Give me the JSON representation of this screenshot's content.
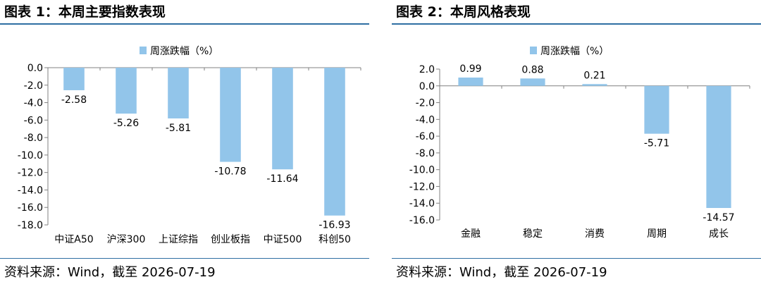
{
  "colors": {
    "bar": "#92c5ea",
    "axis": "#808080",
    "rule": "#2f6fa3"
  },
  "charts": {
    "left": {
      "title": "图表 1：本周主要指数表现",
      "source_label": "资料来源：",
      "source_text": "Wind，截至 2026-07-19",
      "chart_data": {
        "type": "bar",
        "categories": [
          "中证A50",
          "沪深300",
          "上证综指",
          "创业板指",
          "中证500",
          "科创50"
        ],
        "series": [
          {
            "name": "周涨跌幅（%）",
            "values": [
              -2.58,
              -5.26,
              -5.81,
              -10.78,
              -11.64,
              -16.93
            ]
          }
        ],
        "value_labels": [
          "-2.58",
          "-5.26",
          "-5.81",
          "-10.78",
          "-11.64",
          "-16.93"
        ],
        "ylim": [
          -18.0,
          0.0
        ],
        "yticks": [
          "0.0",
          "-2.0",
          "-4.0",
          "-6.0",
          "-8.0",
          "-10.0",
          "-12.0",
          "-14.0",
          "-16.0",
          "-18.0"
        ],
        "xlabel": "",
        "ylabel": "",
        "grid": false,
        "legend": "top-center"
      }
    },
    "right": {
      "title": "图表 2：本周风格表现",
      "source_label": "资料来源：",
      "source_text": "Wind，截至 2026-07-19",
      "chart_data": {
        "type": "bar",
        "categories": [
          "金融",
          "稳定",
          "消费",
          "周期",
          "成长"
        ],
        "series": [
          {
            "name": "周涨跌幅（%）",
            "values": [
              0.99,
              0.88,
              0.21,
              -5.71,
              -14.57
            ]
          }
        ],
        "value_labels": [
          "0.99",
          "0.88",
          "0.21",
          "-5.71",
          "-14.57"
        ],
        "ylim": [
          -16.0,
          2.0
        ],
        "yticks": [
          "2.0",
          "0.0",
          "-2.0",
          "-4.0",
          "-6.0",
          "-8.0",
          "-10.0",
          "-12.0",
          "-14.0",
          "-16.0"
        ],
        "xlabel": "",
        "ylabel": "",
        "grid": false,
        "legend": "top-center"
      }
    }
  }
}
